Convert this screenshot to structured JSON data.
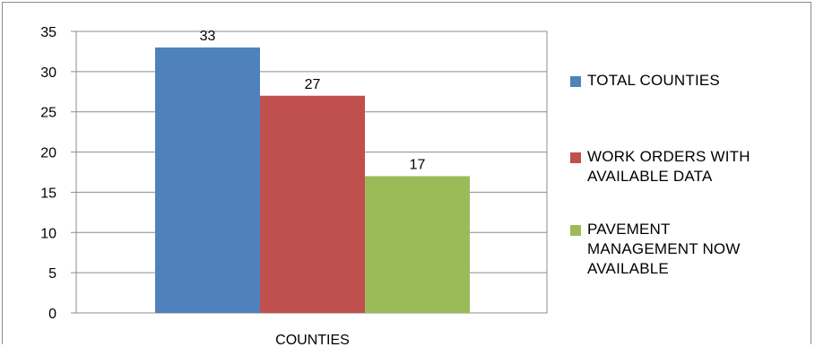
{
  "chart_data": {
    "type": "bar",
    "title": "",
    "xlabel": "COUNTIES",
    "ylabel": "",
    "categories": [
      "COUNTIES"
    ],
    "series": [
      {
        "name": "TOTAL COUNTIES",
        "values": [
          33
        ],
        "color": "#4F81BD"
      },
      {
        "name": "WORK ORDERS WITH\nAVAILABLE DATA",
        "values": [
          27
        ],
        "color": "#C0504D"
      },
      {
        "name": "PAVEMENT\nMANAGEMENT NOW\nAVAILABLE",
        "values": [
          17
        ],
        "color": "#9BBB59"
      }
    ],
    "ylim": [
      0,
      35
    ],
    "yticks": [
      "0",
      "5",
      "10",
      "15",
      "20",
      "25",
      "30",
      "35"
    ],
    "data_labels": [
      "33",
      "27",
      "17"
    ],
    "grid": true,
    "legend_position": "right"
  }
}
